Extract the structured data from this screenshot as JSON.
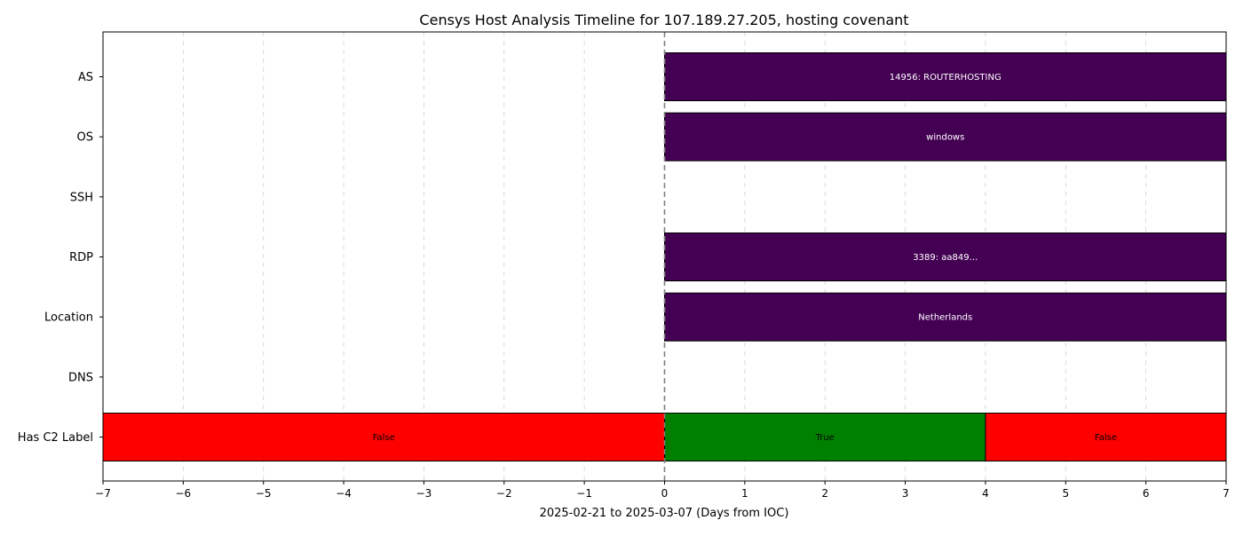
{
  "chart_data": {
    "type": "timeline",
    "title": "Censys Host Analysis Timeline for 107.189.27.205, hosting covenant",
    "xlabel": "2025-02-21 to 2025-03-07 (Days from IOC)",
    "ylabel": "",
    "xlim": [
      -7,
      7
    ],
    "xticks": [
      -7,
      -6,
      -5,
      -4,
      -3,
      -2,
      -1,
      0,
      1,
      2,
      3,
      4,
      5,
      6,
      7
    ],
    "xtick_labels": [
      "−7",
      "−6",
      "−5",
      "−4",
      "−3",
      "−2",
      "−1",
      "0",
      "1",
      "2",
      "3",
      "4",
      "5",
      "6",
      "7"
    ],
    "ioc_marker_x": 0,
    "grid": "x-dashed",
    "categories": [
      "AS",
      "OS",
      "SSH",
      "RDP",
      "Location",
      "DNS",
      "Has C2 Label"
    ],
    "segments": [
      {
        "row": "AS",
        "start": 0,
        "end": 7,
        "label": "14956: ROUTERHOSTING",
        "color": "#440154",
        "text_color": "#ffffff"
      },
      {
        "row": "OS",
        "start": 0,
        "end": 7,
        "label": "windows",
        "color": "#440154",
        "text_color": "#ffffff"
      },
      {
        "row": "RDP",
        "start": 0,
        "end": 7,
        "label": "3389: aa849...",
        "color": "#440154",
        "text_color": "#ffffff"
      },
      {
        "row": "Location",
        "start": 0,
        "end": 7,
        "label": "Netherlands",
        "color": "#440154",
        "text_color": "#ffffff"
      },
      {
        "row": "Has C2 Label",
        "start": -7,
        "end": 0,
        "label": "False",
        "color": "#ff0000",
        "text_color": "#000000"
      },
      {
        "row": "Has C2 Label",
        "start": 0,
        "end": 4,
        "label": "True",
        "color": "#008000",
        "text_color": "#000000"
      },
      {
        "row": "Has C2 Label",
        "start": 4,
        "end": 7,
        "label": "False",
        "color": "#ff0000",
        "text_color": "#000000"
      }
    ]
  }
}
